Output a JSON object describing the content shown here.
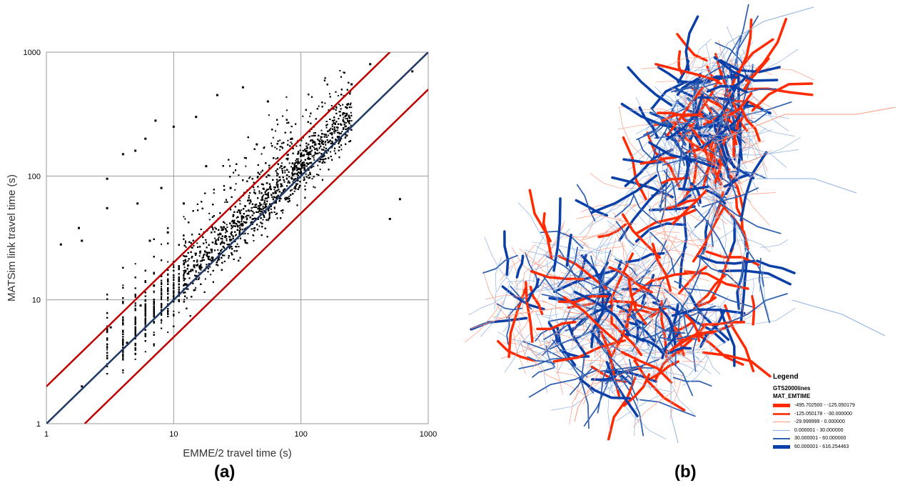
{
  "chart_data": [
    {
      "type": "scatter",
      "title": "",
      "xlabel": "EMME/2 travel time (s)",
      "ylabel": "MATSim link travel time (s)",
      "x_scale": "log",
      "y_scale": "log",
      "xlim": [
        1,
        1000
      ],
      "ylim": [
        1,
        1000
      ],
      "xticks": [
        "1",
        "10",
        "100",
        "1000"
      ],
      "yticks": [
        "1",
        "10",
        "100",
        "1000"
      ],
      "grid": true,
      "marker_color": "#000000",
      "reference_lines": [
        {
          "x": [
            1,
            500
          ],
          "y": [
            2,
            1000
          ],
          "color": "#c00000"
        },
        {
          "x": [
            1,
            1000
          ],
          "y": [
            1,
            1000
          ],
          "color": "#1f3864"
        },
        {
          "x": [
            2,
            1000
          ],
          "y": [
            1,
            500
          ],
          "color": "#c00000"
        }
      ],
      "series": [
        {
          "x": [
            1.3,
            1.8,
            1.9,
            1.9,
            3.0,
            3.0,
            3.2,
            4.0,
            4.3,
            5.0,
            5.2,
            5.5,
            6.0,
            6.5,
            7.0,
            7.2,
            8.0,
            9.0,
            10.0,
            12.0,
            15.0,
            18.0,
            22.0,
            28.0,
            35.0,
            45.0,
            55.0,
            70.0,
            85.0,
            100.0,
            130.0,
            180.0,
            250.0,
            350.0,
            500.0,
            600.0,
            750.0
          ],
          "y": [
            28,
            38,
            30,
            2.0,
            95,
            55,
            6.0,
            150,
            4.5,
            160,
            60,
            9.0,
            200,
            30,
            13,
            280,
            80,
            35,
            250,
            60,
            300,
            120,
            450,
            80,
            520,
            180,
            400,
            120,
            200,
            150,
            180,
            350,
            550,
            800,
            45,
            65,
            700
          ]
        }
      ]
    }
  ],
  "panel_labels": {
    "a": "(a)",
    "b": "(b)"
  },
  "map": {
    "legend": {
      "title": "Legend",
      "layer": "GTS2000lines",
      "field": "MAT_EMTIME",
      "classes": [
        {
          "label": "-495.702500 - -125.050179",
          "color": "#ff2a00",
          "weight": 5
        },
        {
          "label": "-125.050178 - -30.000000",
          "color": "#ff4422",
          "weight": 2.5
        },
        {
          "label": "-29.999999 - 0.000000",
          "color": "#ff9a80",
          "weight": 1
        },
        {
          "label": "0.000001 - 30.000000",
          "color": "#8fb0e0",
          "weight": 1
        },
        {
          "label": "30.000001 - 60.000000",
          "color": "#2f5fb0",
          "weight": 2.5
        },
        {
          "label": "60.000001 - 616.254463",
          "color": "#0a3fa8",
          "weight": 5
        }
      ]
    }
  }
}
